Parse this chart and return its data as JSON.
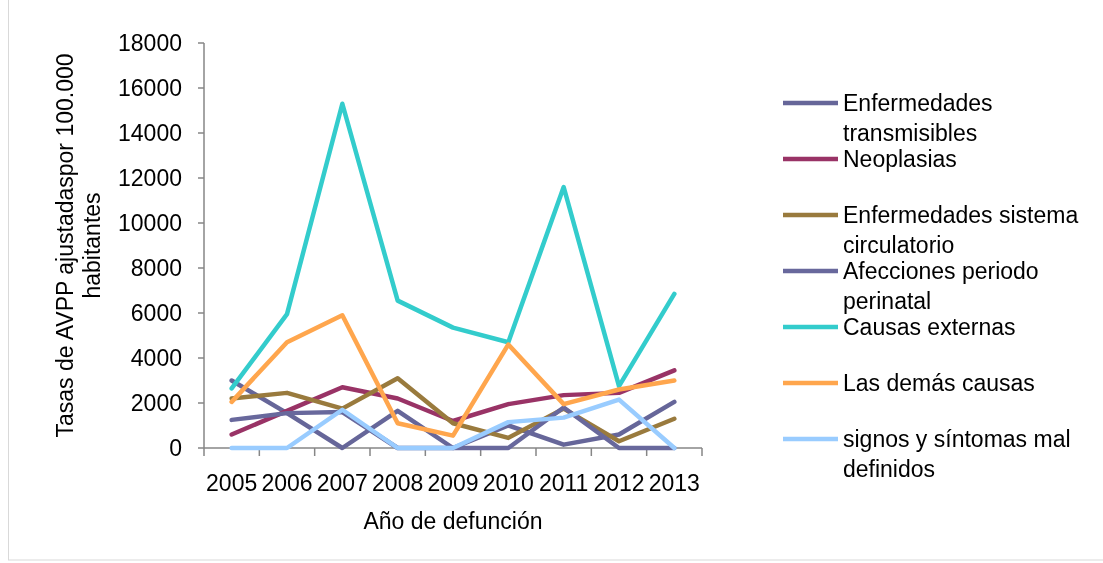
{
  "chart_data": {
    "type": "line",
    "xlabel": "Año de defunción",
    "ylabel": "Tasas de AVPP ajustadaspor 100.000 habitantes",
    "categories": [
      "2005",
      "2006",
      "2007",
      "2008",
      "2009",
      "2010",
      "2011",
      "2012",
      "2013"
    ],
    "ylim": [
      0,
      18000
    ],
    "yticks": [
      0,
      2000,
      4000,
      6000,
      8000,
      10000,
      12000,
      14000,
      16000,
      18000
    ],
    "legend": "right",
    "series": [
      {
        "name": "Enfermedades transmisibles",
        "color": "#666699",
        "values": [
          3000,
          1550,
          0,
          1650,
          0,
          1000,
          150,
          600,
          2050
        ]
      },
      {
        "name": "Neoplasias",
        "color": "#993366",
        "values": [
          600,
          1650,
          2700,
          2200,
          1200,
          1950,
          2350,
          2450,
          3450
        ]
      },
      {
        "name": "Enfermedades sistema circulatorio",
        "color": "#997a3d",
        "values": [
          2200,
          2450,
          1750,
          3100,
          1100,
          450,
          1750,
          300,
          1300
        ]
      },
      {
        "name": "Afecciones periodo perinatal",
        "color": "#68689c",
        "values": [
          1250,
          1550,
          1600,
          0,
          0,
          0,
          1800,
          0,
          0
        ]
      },
      {
        "name": "Causas externas",
        "color": "#33cccc",
        "values": [
          2650,
          5950,
          15300,
          6550,
          5350,
          4700,
          11600,
          2750,
          6850
        ]
      },
      {
        "name": "Las demás causas",
        "color": "#ffa64d",
        "values": [
          2050,
          4700,
          5900,
          1100,
          550,
          4600,
          1950,
          2600,
          3000
        ]
      },
      {
        "name": "signos y síntomas mal definidos",
        "color": "#99ccff",
        "values": [
          0,
          0,
          1700,
          0,
          0,
          1150,
          1350,
          2150,
          0
        ]
      }
    ]
  }
}
